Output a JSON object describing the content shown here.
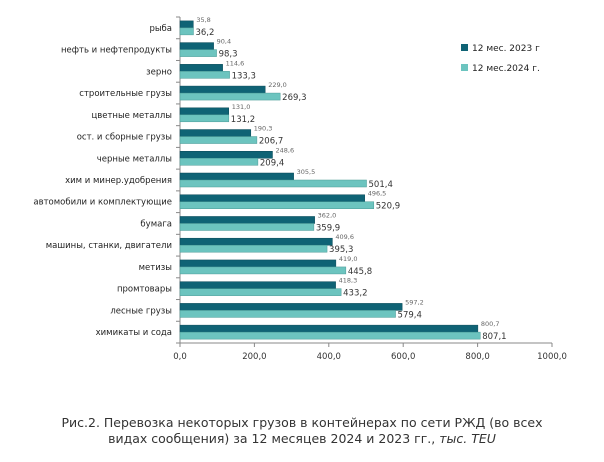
{
  "chart_data": {
    "type": "bar",
    "orientation": "horizontal",
    "categories": [
      "рыба",
      "нефть и нефтепродукты",
      "зерно",
      "строительные грузы",
      "цветные металлы",
      "ост. и сборные грузы",
      "черные металлы",
      "хим и минер.удобрения",
      "автомобили и комплектующие",
      "бумага",
      "машины, станки, двигатели",
      "метизы",
      "промтовары",
      "лесные грузы",
      "химикаты и сода"
    ],
    "series": [
      {
        "name": "12 мес. 2023 г",
        "color": "#0f6375",
        "values": [
          35.8,
          90.4,
          114.6,
          229.0,
          131.0,
          190.3,
          248.6,
          305.5,
          496.5,
          362.0,
          409.6,
          419.0,
          418.3,
          597.2,
          800.7
        ],
        "labels": [
          "35,8",
          "90,4",
          "114,6",
          "229,0",
          "131,0",
          "190,3",
          "248,6",
          "305,5",
          "496,5",
          "362,0",
          "409,6",
          "419,0",
          "418,3",
          "597,2",
          "800,7"
        ]
      },
      {
        "name": "12 мес.2024 г.",
        "color": "#6cc4bf",
        "values": [
          36.2,
          98.3,
          133.3,
          269.3,
          131.2,
          206.7,
          209.4,
          501.4,
          520.9,
          359.9,
          395.3,
          445.8,
          433.2,
          579.4,
          807.1
        ],
        "labels": [
          "36,2",
          "98,3",
          "133,3",
          "269,3",
          "131,2",
          "206,7",
          "209,4",
          "501,4",
          "520,9",
          "359,9",
          "395,3",
          "445,8",
          "433,2",
          "579,4",
          "807,1"
        ]
      }
    ],
    "xlim": [
      0,
      1000
    ],
    "xticks": [
      0,
      200,
      400,
      600,
      800,
      1000
    ],
    "xtick_labels": [
      "0,0",
      "200,0",
      "400,0",
      "600,0",
      "800,0",
      "1000,0"
    ],
    "grid": false,
    "legend": "top-right"
  },
  "caption": {
    "line1": "Рис.2. Перевозка некоторых грузов в контейнерах по сети РЖД  (во всех",
    "line2": "видах сообщения) за 12 месяцев 2024 и 2023 гг., ",
    "unit": "тыс. TEU"
  }
}
